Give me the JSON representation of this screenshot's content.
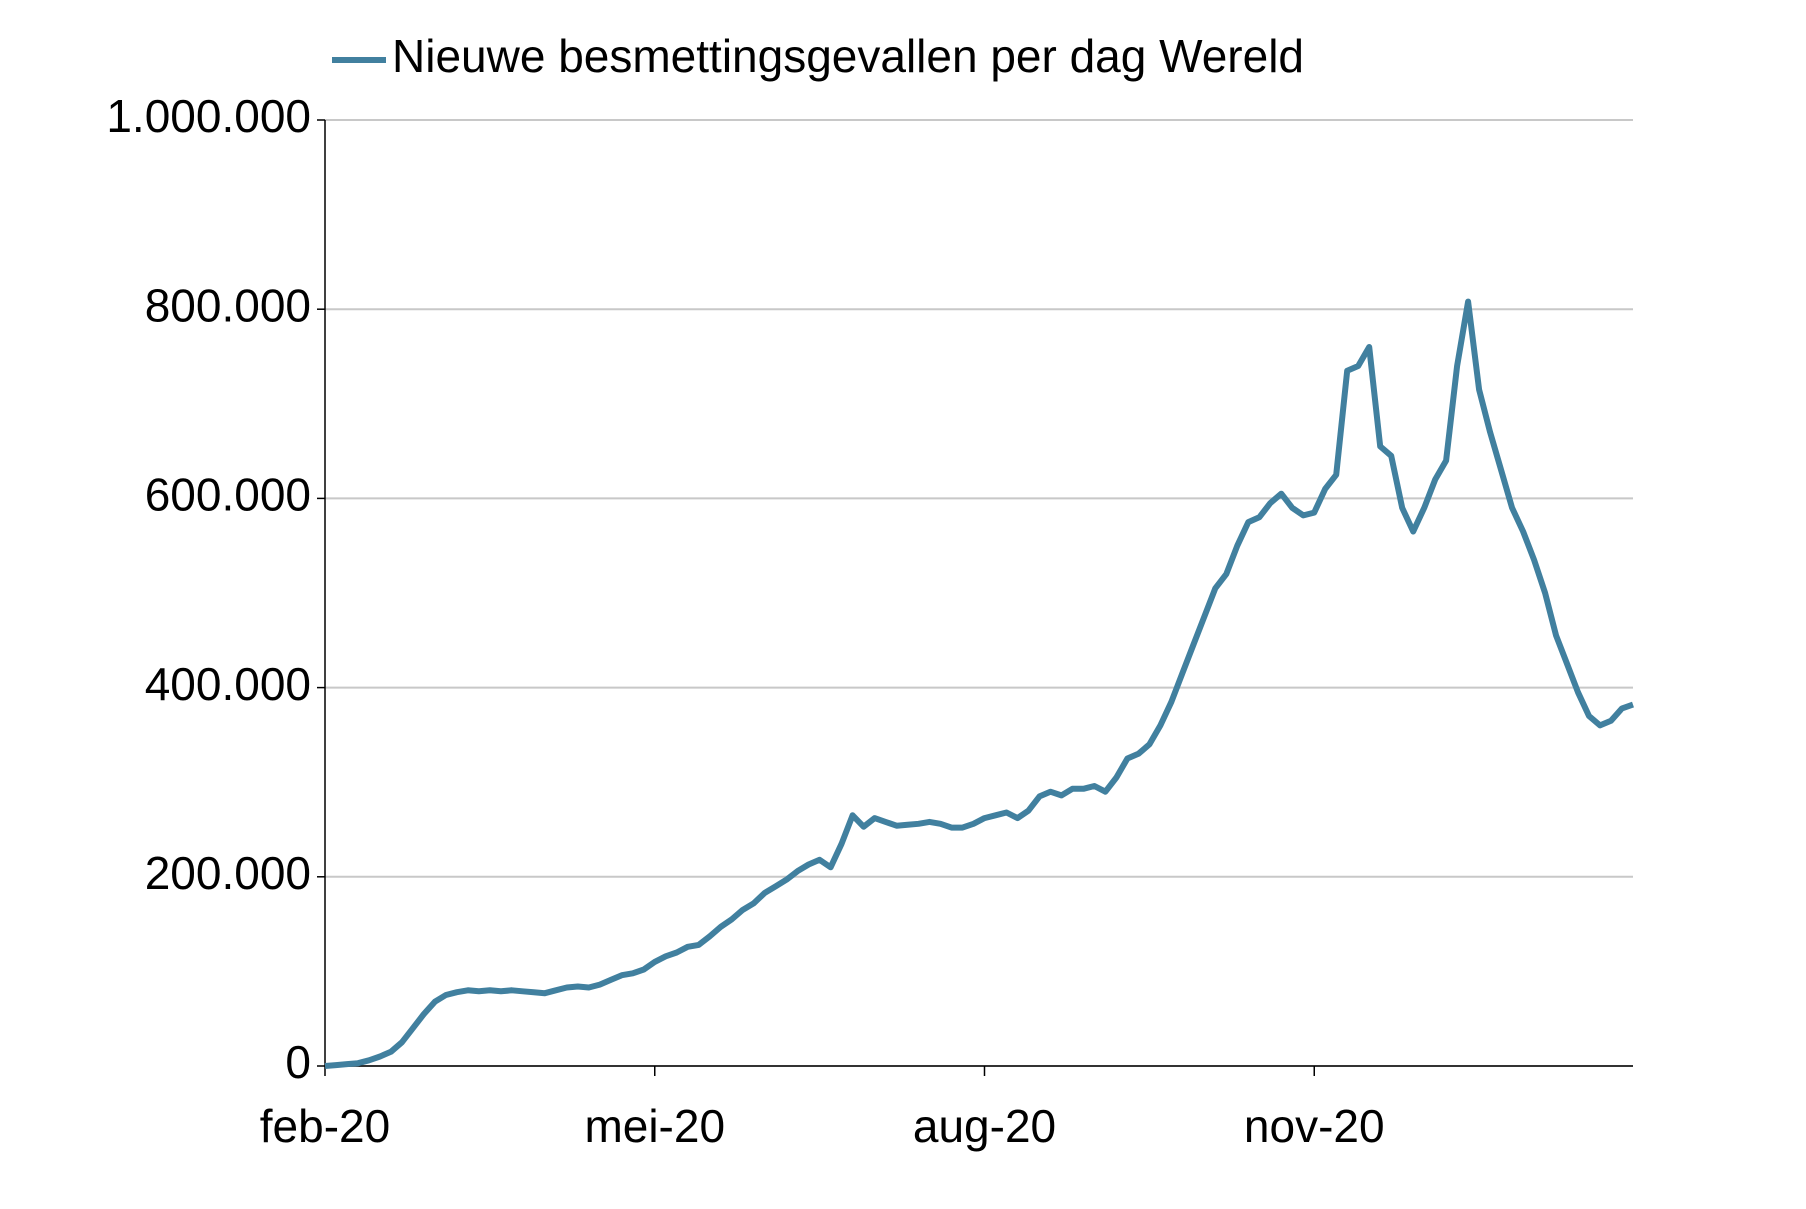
{
  "chart_data": {
    "type": "line",
    "categories": [
      "feb-20",
      null,
      null,
      null,
      null,
      null,
      null,
      null,
      null,
      null,
      null,
      null,
      null,
      null,
      null,
      null,
      null,
      null,
      null,
      null,
      null,
      null,
      null,
      null,
      null,
      null,
      null,
      null,
      null,
      null,
      "mei-20",
      null,
      null,
      null,
      null,
      null,
      null,
      null,
      null,
      null,
      null,
      null,
      null,
      null,
      null,
      null,
      null,
      null,
      null,
      null,
      null,
      null,
      null,
      null,
      null,
      null,
      null,
      null,
      null,
      null,
      "aug-20",
      null,
      null,
      null,
      null,
      null,
      null,
      null,
      null,
      null,
      null,
      null,
      null,
      null,
      null,
      null,
      null,
      null,
      null,
      null,
      null,
      null,
      null,
      null,
      null,
      null,
      null,
      null,
      null,
      null,
      "nov-20",
      null,
      null,
      null,
      null,
      null,
      null,
      null,
      null,
      null,
      null,
      null,
      null,
      null,
      null,
      null,
      null,
      null,
      null,
      null,
      null,
      null,
      null,
      null,
      null,
      null,
      null,
      null,
      null,
      null
    ],
    "series": [
      {
        "name": "Nieuwe besmettingsgevallen per dag Wereld",
        "color": "#41809f",
        "values": [
          0,
          1000,
          2000,
          3000,
          6000,
          10000,
          15000,
          25000,
          40000,
          55000,
          68000,
          75000,
          78000,
          80000,
          79000,
          80000,
          79000,
          80000,
          79000,
          78000,
          77000,
          80000,
          83000,
          84000,
          83000,
          86000,
          91000,
          96000,
          98000,
          102000,
          110000,
          116000,
          120000,
          126000,
          128000,
          137000,
          147000,
          155000,
          165000,
          172000,
          183000,
          190000,
          197000,
          206000,
          213000,
          218000,
          210000,
          235000,
          265000,
          253000,
          262000,
          258000,
          254000,
          255000,
          256000,
          258000,
          256000,
          252000,
          252000,
          256000,
          262000,
          265000,
          268000,
          262000,
          270000,
          285000,
          290000,
          286000,
          293000,
          293000,
          296000,
          290000,
          305000,
          325000,
          330000,
          340000,
          360000,
          385000,
          415000,
          445000,
          475000,
          505000,
          520000,
          550000,
          575000,
          580000,
          595000,
          605000,
          590000,
          582000,
          585000,
          610000,
          625000,
          735000,
          740000,
          760000,
          655000,
          645000,
          590000,
          565000,
          590000,
          620000,
          640000,
          740000,
          808000,
          715000,
          670000,
          630000,
          590000,
          565000,
          535000,
          500000,
          455000,
          425000,
          395000,
          370000,
          360000,
          365000,
          378000,
          382000
        ]
      }
    ],
    "ylim": [
      0,
      1000000
    ],
    "yticks": [
      0,
      {
        "value": 200000,
        "label": "200.000"
      },
      {
        "value": 400000,
        "label": "400.000"
      },
      {
        "value": 600000,
        "label": "600.000"
      },
      {
        "value": 800000,
        "label": "800.000"
      },
      {
        "value": 1000000,
        "label": "1.000.000"
      }
    ],
    "grid": true,
    "legend": "top"
  }
}
